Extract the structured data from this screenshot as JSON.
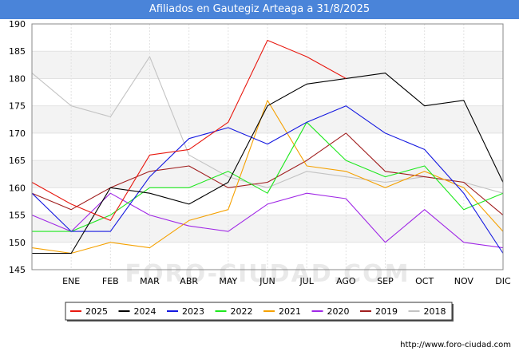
{
  "chart_data": {
    "type": "line",
    "title": "Afiliados en Gautegiz Arteaga a 31/8/2025",
    "categories": [
      "",
      "ENE",
      "FEB",
      "MAR",
      "ABR",
      "MAY",
      "JUN",
      "JUL",
      "AGO",
      "SEP",
      "OCT",
      "NOV",
      "DIC"
    ],
    "ylim": [
      145,
      190
    ],
    "yticks": [
      145,
      150,
      155,
      160,
      165,
      170,
      175,
      180,
      185,
      190
    ],
    "xlabel": "",
    "ylabel": "",
    "grid": true,
    "legend_position": "bottom",
    "series": [
      {
        "name": "2025",
        "color": "#e8180f",
        "values": [
          161,
          157,
          154,
          166,
          167,
          172,
          187,
          184,
          180,
          null,
          null,
          null,
          null
        ]
      },
      {
        "name": "2024",
        "color": "#000000",
        "values": [
          148,
          148,
          160,
          159,
          157,
          161,
          175,
          179,
          180,
          181,
          175,
          176,
          161
        ]
      },
      {
        "name": "2023",
        "color": "#1418e0",
        "values": [
          159,
          152,
          152,
          162,
          169,
          171,
          168,
          172,
          175,
          170,
          167,
          159,
          148
        ]
      },
      {
        "name": "2022",
        "color": "#1ee81e",
        "values": [
          152,
          152,
          155,
          160,
          160,
          163,
          159,
          172,
          165,
          162,
          164,
          156,
          159
        ]
      },
      {
        "name": "2021",
        "color": "#f5a100",
        "values": [
          149,
          148,
          150,
          149,
          154,
          156,
          176,
          164,
          163,
          160,
          163,
          160,
          152
        ]
      },
      {
        "name": "2020",
        "color": "#a028e6",
        "values": [
          155,
          152,
          159,
          155,
          153,
          152,
          157,
          159,
          158,
          150,
          156,
          150,
          149
        ]
      },
      {
        "name": "2019",
        "color": "#a01e1e",
        "values": [
          159,
          156,
          160,
          163,
          164,
          160,
          161,
          165,
          170,
          163,
          162,
          161,
          155
        ]
      },
      {
        "name": "2018",
        "color": "#c3c3c3",
        "values": [
          181,
          175,
          173,
          184,
          166,
          162,
          160,
          163,
          162,
          161,
          162,
          161,
          159
        ]
      }
    ]
  },
  "watermark": "FORO-CIUDAD.COM",
  "source": "http://www.foro-ciudad.com"
}
